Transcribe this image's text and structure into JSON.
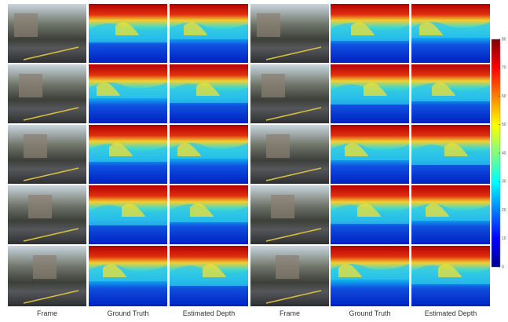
{
  "figure": {
    "column_labels": [
      "Frame",
      "Ground Truth",
      "Estimated Depth",
      "Frame",
      "Ground Truth",
      "Estimated Depth"
    ],
    "colorbar": {
      "ticks": [
        0,
        10,
        20,
        30,
        40,
        50,
        60,
        70,
        80
      ]
    }
  }
}
